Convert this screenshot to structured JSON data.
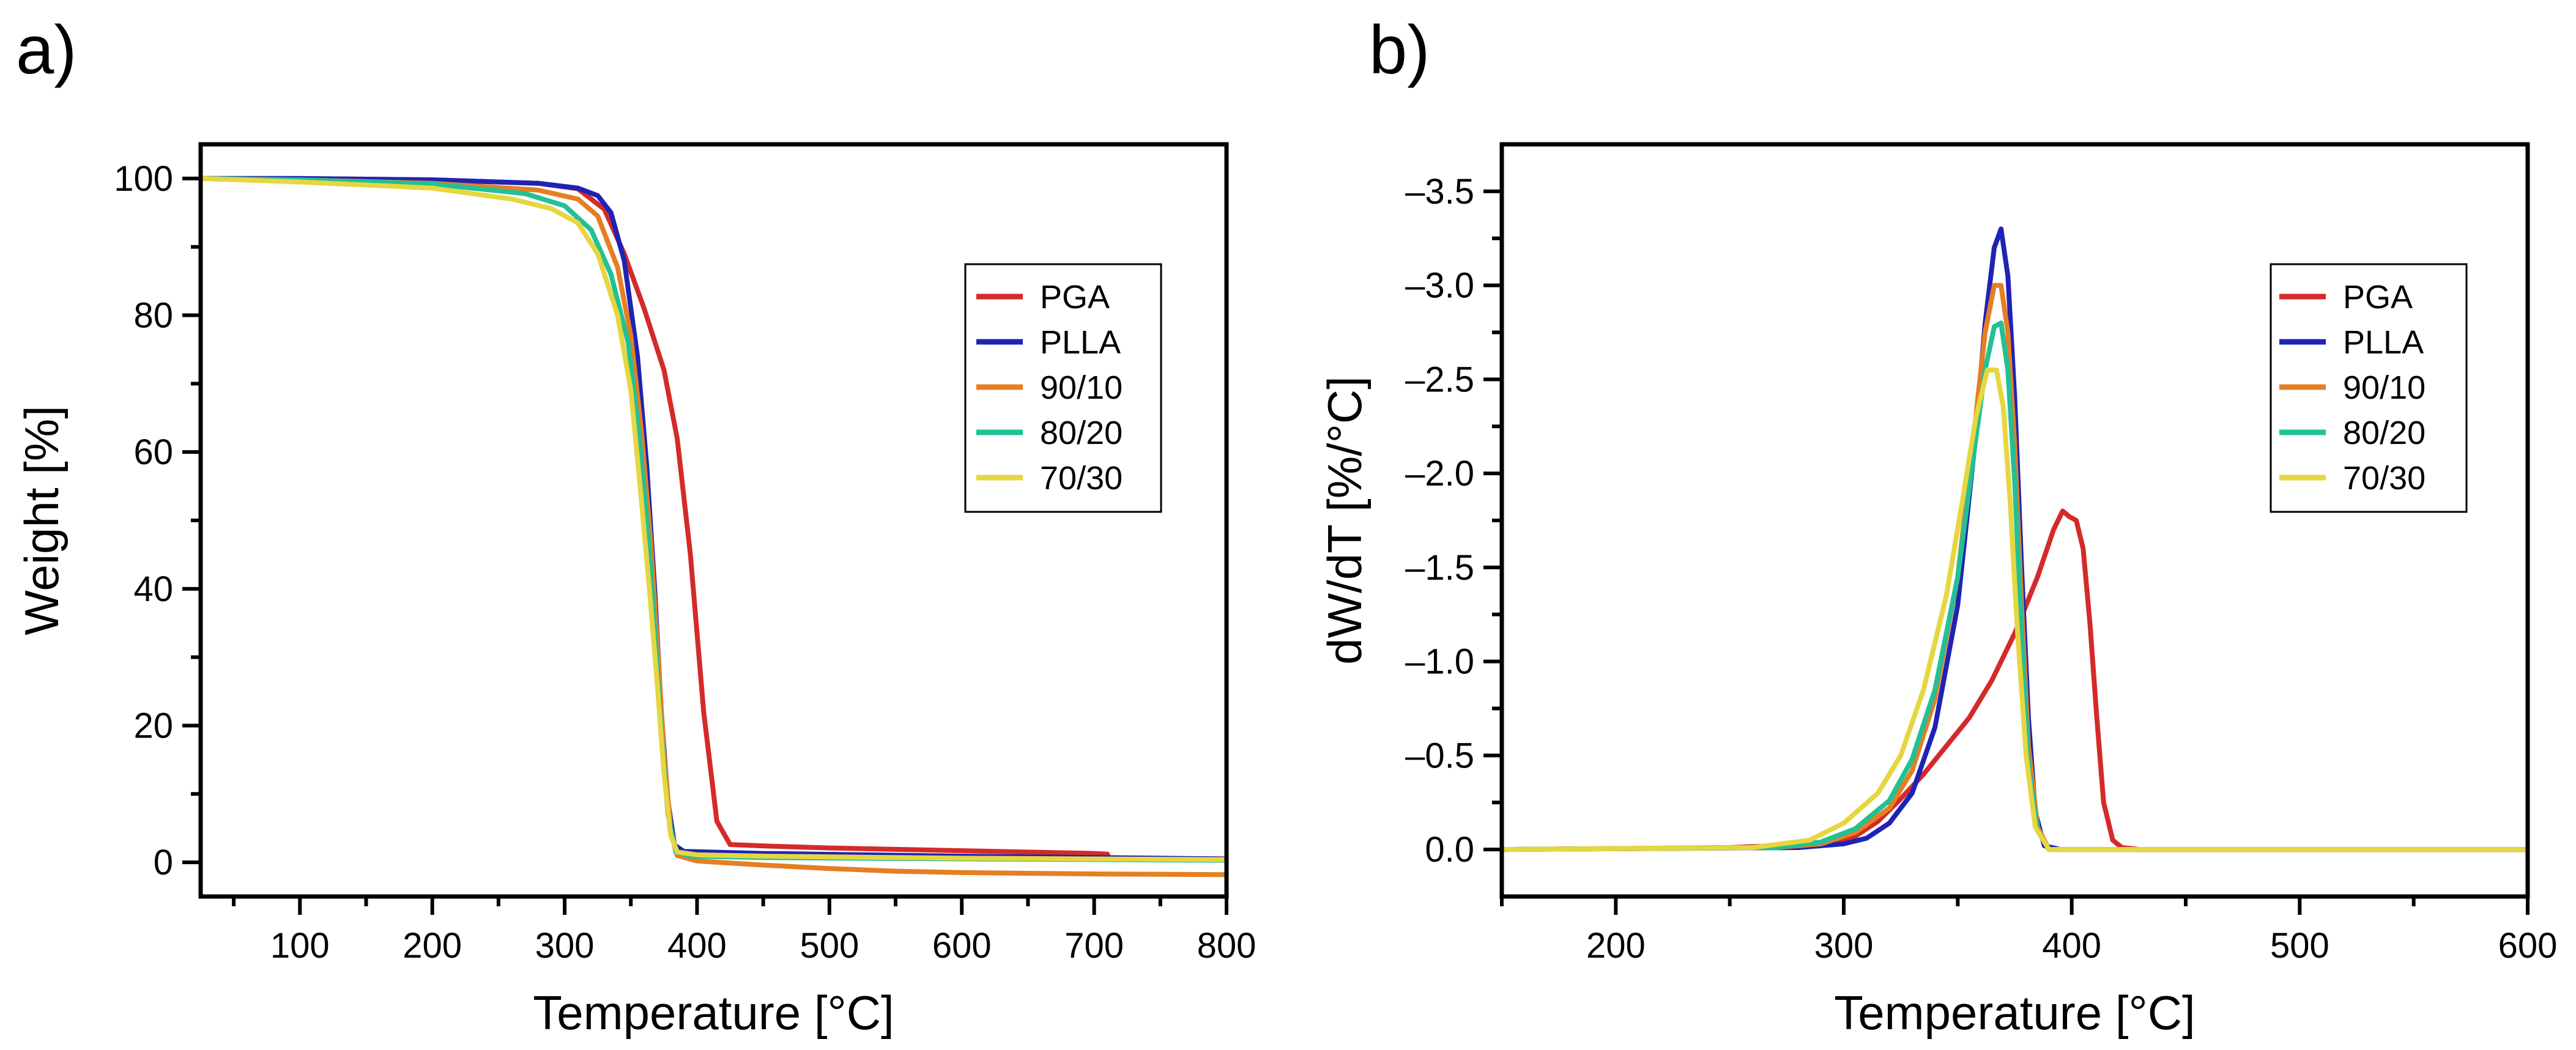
{
  "chart_data": [
    {
      "type": "line",
      "panel_label": "a)",
      "title": "",
      "xlabel": "Temperature [°C]",
      "ylabel": "Weight [%]",
      "xlim": [
        25,
        800
      ],
      "ylim": [
        -5,
        105
      ],
      "xticks": [
        100,
        200,
        300,
        400,
        500,
        600,
        700,
        800
      ],
      "yticks": [
        0,
        20,
        40,
        60,
        80,
        100
      ],
      "legend_position": "upper-right",
      "series": [
        {
          "name": "PGA",
          "color": "#d42a2a",
          "x": [
            25,
            100,
            200,
            280,
            310,
            330,
            345,
            360,
            375,
            385,
            395,
            405,
            415,
            425,
            450,
            500,
            600,
            700,
            710,
            711,
            800
          ],
          "y": [
            100,
            100,
            99.8,
            99.3,
            98.5,
            95.5,
            89,
            81,
            72,
            62,
            45,
            22,
            6,
            2.6,
            2.4,
            2.1,
            1.7,
            1.3,
            1.2,
            0.6,
            0.5
          ]
        },
        {
          "name": "PLLA",
          "color": "#1f23b4",
          "x": [
            25,
            100,
            200,
            280,
            310,
            325,
            335,
            345,
            355,
            362,
            368,
            373,
            378,
            383,
            390,
            450,
            600,
            800
          ],
          "y": [
            100,
            100,
            99.8,
            99.3,
            98.6,
            97.5,
            95,
            88,
            74,
            58,
            40,
            22,
            9,
            2.5,
            1.6,
            1.3,
            0.9,
            0.5
          ]
        },
        {
          "name": "90/10",
          "color": "#e67e22",
          "x": [
            25,
            100,
            200,
            280,
            310,
            325,
            340,
            350,
            358,
            365,
            370,
            375,
            380,
            385,
            400,
            450,
            500,
            550,
            600,
            700,
            800
          ],
          "y": [
            100,
            99.8,
            99.3,
            98.3,
            97,
            94.5,
            87,
            77,
            63,
            47,
            32,
            16,
            5,
            1,
            0.2,
            -0.4,
            -0.9,
            -1.3,
            -1.5,
            -1.7,
            -1.8
          ]
        },
        {
          "name": "80/20",
          "color": "#22c095",
          "x": [
            25,
            100,
            200,
            270,
            300,
            320,
            335,
            348,
            356,
            363,
            368,
            373,
            378,
            384,
            395,
            450,
            600,
            800
          ],
          "y": [
            100,
            99.8,
            99.2,
            97.8,
            96,
            92.5,
            86,
            76,
            63,
            48,
            34,
            19,
            7,
            1.5,
            0.9,
            0.7,
            0.5,
            0.3
          ]
        },
        {
          "name": "70/30",
          "color": "#e6d640",
          "x": [
            25,
            100,
            200,
            260,
            290,
            310,
            325,
            340,
            350,
            357,
            364,
            370,
            375,
            380,
            385,
            400,
            450,
            600,
            800
          ],
          "y": [
            100,
            99.5,
            98.6,
            97,
            95.6,
            93.5,
            89,
            80,
            69,
            55,
            40,
            26,
            13,
            4,
            1.5,
            1.1,
            0.9,
            0.6,
            0.4
          ]
        }
      ]
    },
    {
      "type": "line",
      "panel_label": "b)",
      "title": "",
      "xlabel": "Temperature [°C]",
      "ylabel": "dW/dT [%/°C]",
      "xlim": [
        150,
        600
      ],
      "ylim": [
        0.25,
        -3.75
      ],
      "y_inverted": true,
      "xticks": [
        200,
        300,
        400,
        500,
        600
      ],
      "yticks": [
        0.0,
        -0.5,
        -1.0,
        -1.5,
        -2.0,
        -2.5,
        -3.0,
        -3.5
      ],
      "ytick_labels": [
        "0.0",
        "–0.5",
        "–1.0",
        "–1.5",
        "–2.0",
        "–2.5",
        "–3.0",
        "–3.5"
      ],
      "legend_position": "upper-right",
      "series": [
        {
          "name": "PGA",
          "color": "#d42a2a",
          "x": [
            150,
            250,
            290,
            305,
            315,
            325,
            335,
            345,
            355,
            365,
            375,
            385,
            392,
            396,
            399,
            402,
            405,
            408,
            411,
            414,
            418,
            422,
            430,
            600
          ],
          "y": [
            0,
            -0.01,
            -0.03,
            -0.07,
            -0.15,
            -0.27,
            -0.4,
            -0.55,
            -0.7,
            -0.9,
            -1.15,
            -1.45,
            -1.7,
            -1.8,
            -1.77,
            -1.75,
            -1.6,
            -1.2,
            -0.7,
            -0.25,
            -0.05,
            -0.01,
            0,
            0
          ]
        },
        {
          "name": "PLLA",
          "color": "#1f23b4",
          "x": [
            150,
            280,
            300,
            310,
            320,
            330,
            340,
            350,
            357,
            362,
            366,
            369,
            372,
            375,
            378,
            381,
            384,
            388,
            395,
            600
          ],
          "y": [
            0,
            -0.01,
            -0.03,
            -0.06,
            -0.14,
            -0.3,
            -0.65,
            -1.3,
            -2.1,
            -2.8,
            -3.2,
            -3.3,
            -3.05,
            -2.4,
            -1.5,
            -0.7,
            -0.2,
            -0.02,
            0,
            0
          ]
        },
        {
          "name": "90/10",
          "color": "#e67e22",
          "x": [
            150,
            270,
            290,
            305,
            320,
            330,
            340,
            350,
            357,
            362,
            366,
            369,
            372,
            375,
            378,
            381,
            385,
            390,
            600
          ],
          "y": [
            0,
            -0.01,
            -0.03,
            -0.09,
            -0.22,
            -0.42,
            -0.8,
            -1.45,
            -2.2,
            -2.75,
            -3.0,
            -3.0,
            -2.75,
            -2.15,
            -1.3,
            -0.55,
            -0.12,
            0,
            0
          ]
        },
        {
          "name": "80/20",
          "color": "#22c095",
          "x": [
            150,
            270,
            290,
            305,
            320,
            330,
            340,
            350,
            357,
            362,
            366,
            369,
            372,
            375,
            378,
            381,
            385,
            390,
            600
          ],
          "y": [
            0,
            -0.01,
            -0.04,
            -0.11,
            -0.26,
            -0.48,
            -0.85,
            -1.45,
            -2.1,
            -2.55,
            -2.78,
            -2.8,
            -2.55,
            -1.95,
            -1.15,
            -0.45,
            -0.1,
            0,
            0
          ]
        },
        {
          "name": "70/30",
          "color": "#e6d640",
          "x": [
            150,
            260,
            285,
            300,
            315,
            325,
            335,
            345,
            352,
            358,
            363,
            367,
            370,
            373,
            376,
            380,
            384,
            390,
            600
          ],
          "y": [
            0,
            -0.01,
            -0.05,
            -0.14,
            -0.3,
            -0.5,
            -0.85,
            -1.35,
            -1.85,
            -2.3,
            -2.55,
            -2.55,
            -2.35,
            -1.85,
            -1.2,
            -0.5,
            -0.12,
            0,
            0
          ]
        }
      ]
    }
  ]
}
